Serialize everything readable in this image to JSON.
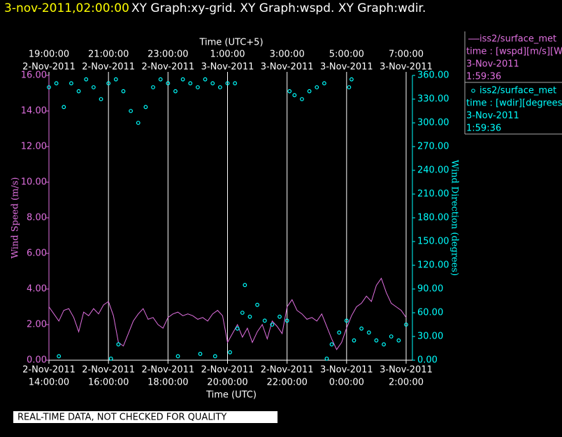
{
  "chart_data": {
    "type": "xy-time",
    "title_date": "3-nov-2011,02:00:00",
    "title": "XY Graph:xy-grid.  XY Graph:wspd.  XY Graph:wdir.",
    "xlabel": "Time (UTC)",
    "x2label": "Time (UTC+5)",
    "ylabel": "Wind Speed (m/s)",
    "y2label": "Wind Direction (degrees)",
    "note": "REAL-TIME DATA, NOT CHECKED FOR QUALITY",
    "xlim": [
      "2011-11-02T14:00",
      "2011-11-03T02:00"
    ],
    "xticks": [
      {
        "value": "2011-11-02T14:00",
        "label": [
          "2-Nov-2011",
          "14:00:00"
        ]
      },
      {
        "value": "2011-11-02T16:00",
        "label": [
          "2-Nov-2011",
          "16:00:00"
        ]
      },
      {
        "value": "2011-11-02T18:00",
        "label": [
          "2-Nov-2011",
          "18:00:00"
        ]
      },
      {
        "value": "2011-11-02T20:00",
        "label": [
          "2-Nov-2011",
          "20:00:00"
        ]
      },
      {
        "value": "2011-11-02T22:00",
        "label": [
          "2-Nov-2011",
          "22:00:00"
        ]
      },
      {
        "value": "2011-11-03T00:00",
        "label": [
          "3-Nov-2011",
          "0:00:00"
        ]
      },
      {
        "value": "2011-11-03T02:00",
        "label": [
          "3-Nov-2011",
          "2:00:00"
        ]
      }
    ],
    "x2ticks": [
      {
        "value": "2011-11-02T14:00",
        "label": [
          "19:00:00",
          "2-Nov-2011"
        ]
      },
      {
        "value": "2011-11-02T16:00",
        "label": [
          "21:00:00",
          "2-Nov-2011"
        ]
      },
      {
        "value": "2011-11-02T18:00",
        "label": [
          "23:00:00",
          "2-Nov-2011"
        ]
      },
      {
        "value": "2011-11-02T20:00",
        "label": [
          "1:00:00",
          "3-Nov-2011"
        ]
      },
      {
        "value": "2011-11-02T22:00",
        "label": [
          "3:00:00",
          "3-Nov-2011"
        ]
      },
      {
        "value": "2011-11-03T00:00",
        "label": [
          "5:00:00",
          "3-Nov-2011"
        ]
      },
      {
        "value": "2011-11-03T02:00",
        "label": [
          "7:00:00",
          "3-Nov-2011"
        ]
      }
    ],
    "ylim": [
      0,
      16
    ],
    "yticks": [
      {
        "value": 0,
        "label": "0.00"
      },
      {
        "value": 2,
        "label": "2.00"
      },
      {
        "value": 4,
        "label": "4.00"
      },
      {
        "value": 6,
        "label": "6.00"
      },
      {
        "value": 8,
        "label": "8.00"
      },
      {
        "value": 10,
        "label": "10.00"
      },
      {
        "value": 12,
        "label": "12.00"
      },
      {
        "value": 14,
        "label": "14.00"
      },
      {
        "value": 16,
        "label": "16.00"
      }
    ],
    "y2lim": [
      0,
      360
    ],
    "y2ticks": [
      {
        "value": 0,
        "label": "0.00"
      },
      {
        "value": 30,
        "label": "30.00"
      },
      {
        "value": 60,
        "label": "60.00"
      },
      {
        "value": 90,
        "label": "90.00"
      },
      {
        "value": 120,
        "label": "120.00"
      },
      {
        "value": 150,
        "label": "150.00"
      },
      {
        "value": 180,
        "label": "180.00"
      },
      {
        "value": 210,
        "label": "210.00"
      },
      {
        "value": 240,
        "label": "240.00"
      },
      {
        "value": 270,
        "label": "270.00"
      },
      {
        "value": 300,
        "label": "300.00"
      },
      {
        "value": 330,
        "label": "330.00"
      },
      {
        "value": 360,
        "label": "360.00"
      }
    ],
    "grid": true,
    "series": [
      {
        "name": "iss2/surface_met",
        "legend_lines": [
          "time : [wspd][m/s][Wind",
          "3-Nov-2011",
          "1:59:36"
        ],
        "color": "#e070e0",
        "style": "line",
        "x": [
          "2011-11-02T14:00",
          "2011-11-02T14:10",
          "2011-11-02T14:20",
          "2011-11-02T14:30",
          "2011-11-02T14:40",
          "2011-11-02T14:50",
          "2011-11-02T15:00",
          "2011-11-02T15:10",
          "2011-11-02T15:20",
          "2011-11-02T15:30",
          "2011-11-02T15:40",
          "2011-11-02T15:50",
          "2011-11-02T16:00",
          "2011-11-02T16:10",
          "2011-11-02T16:20",
          "2011-11-02T16:30",
          "2011-11-02T16:40",
          "2011-11-02T16:50",
          "2011-11-02T17:00",
          "2011-11-02T17:10",
          "2011-11-02T17:20",
          "2011-11-02T17:30",
          "2011-11-02T17:40",
          "2011-11-02T17:50",
          "2011-11-02T18:00",
          "2011-11-02T18:10",
          "2011-11-02T18:20",
          "2011-11-02T18:30",
          "2011-11-02T18:40",
          "2011-11-02T18:50",
          "2011-11-02T19:00",
          "2011-11-02T19:10",
          "2011-11-02T19:20",
          "2011-11-02T19:30",
          "2011-11-02T19:40",
          "2011-11-02T19:50",
          "2011-11-02T20:00",
          "2011-11-02T20:10",
          "2011-11-02T20:20",
          "2011-11-02T20:30",
          "2011-11-02T20:40",
          "2011-11-02T20:50",
          "2011-11-02T21:00",
          "2011-11-02T21:10",
          "2011-11-02T21:20",
          "2011-11-02T21:30",
          "2011-11-02T21:40",
          "2011-11-02T21:50",
          "2011-11-02T22:00",
          "2011-11-02T22:10",
          "2011-11-02T22:20",
          "2011-11-02T22:30",
          "2011-11-02T22:40",
          "2011-11-02T22:50",
          "2011-11-02T23:00",
          "2011-11-02T23:10",
          "2011-11-02T23:20",
          "2011-11-02T23:30",
          "2011-11-02T23:40",
          "2011-11-02T23:50",
          "2011-11-03T00:00",
          "2011-11-03T00:10",
          "2011-11-03T00:20",
          "2011-11-03T00:30",
          "2011-11-03T00:40",
          "2011-11-03T00:50",
          "2011-11-03T01:00",
          "2011-11-03T01:10",
          "2011-11-03T01:20",
          "2011-11-03T01:30",
          "2011-11-03T01:40",
          "2011-11-03T01:50",
          "2011-11-03T02:00"
        ],
        "values": [
          3.0,
          2.6,
          2.2,
          2.8,
          2.9,
          2.4,
          1.6,
          2.7,
          2.5,
          2.9,
          2.6,
          3.1,
          3.3,
          2.5,
          1.0,
          0.8,
          1.5,
          2.2,
          2.6,
          2.9,
          2.3,
          2.4,
          2.0,
          1.8,
          2.4,
          2.6,
          2.7,
          2.5,
          2.6,
          2.5,
          2.3,
          2.4,
          2.2,
          2.6,
          2.8,
          2.5,
          1.0,
          1.5,
          2.0,
          1.3,
          1.8,
          1.0,
          1.6,
          2.0,
          1.2,
          2.2,
          1.9,
          1.5,
          3.0,
          3.4,
          2.8,
          2.6,
          2.3,
          2.4,
          2.2,
          2.6,
          1.9,
          1.2,
          0.6,
          1.0,
          1.8,
          2.5,
          3.0,
          3.2,
          3.6,
          3.3,
          4.2,
          4.6,
          3.8,
          3.2,
          3.0,
          2.8,
          2.4
        ]
      },
      {
        "name": "iss2/surface_met",
        "legend_lines": [
          "time : [wdir][degrees][V",
          "3-Nov-2011",
          "1:59:36"
        ],
        "color": "#00ffff",
        "style": "scatter",
        "axis": "y2",
        "x": [
          "2011-11-02T14:00",
          "2011-11-02T14:15",
          "2011-11-02T14:20",
          "2011-11-02T14:30",
          "2011-11-02T14:45",
          "2011-11-02T15:00",
          "2011-11-02T15:15",
          "2011-11-02T15:30",
          "2011-11-02T15:45",
          "2011-11-02T16:00",
          "2011-11-02T16:05",
          "2011-11-02T16:15",
          "2011-11-02T16:20",
          "2011-11-02T16:30",
          "2011-11-02T16:45",
          "2011-11-02T17:00",
          "2011-11-02T17:15",
          "2011-11-02T17:30",
          "2011-11-02T17:45",
          "2011-11-02T18:00",
          "2011-11-02T18:15",
          "2011-11-02T18:20",
          "2011-11-02T18:30",
          "2011-11-02T18:45",
          "2011-11-02T19:00",
          "2011-11-02T19:05",
          "2011-11-02T19:15",
          "2011-11-02T19:30",
          "2011-11-02T19:35",
          "2011-11-02T19:45",
          "2011-11-02T20:00",
          "2011-11-02T20:05",
          "2011-11-02T20:15",
          "2011-11-02T20:20",
          "2011-11-02T20:30",
          "2011-11-02T20:35",
          "2011-11-02T20:45",
          "2011-11-02T21:00",
          "2011-11-02T21:15",
          "2011-11-02T21:30",
          "2011-11-02T21:45",
          "2011-11-02T22:00",
          "2011-11-02T22:05",
          "2011-11-02T22:15",
          "2011-11-02T22:30",
          "2011-11-02T22:45",
          "2011-11-02T23:00",
          "2011-11-02T23:15",
          "2011-11-02T23:20",
          "2011-11-02T23:30",
          "2011-11-02T23:45",
          "2011-11-03T00:00",
          "2011-11-03T00:05",
          "2011-11-03T00:10",
          "2011-11-03T00:15",
          "2011-11-03T00:30",
          "2011-11-03T00:45",
          "2011-11-03T01:00",
          "2011-11-03T01:15",
          "2011-11-03T01:30",
          "2011-11-03T01:45",
          "2011-11-03T02:00"
        ],
        "values": [
          345,
          350,
          5,
          320,
          350,
          340,
          355,
          345,
          330,
          350,
          2,
          355,
          20,
          340,
          315,
          300,
          320,
          345,
          355,
          350,
          340,
          5,
          355,
          350,
          345,
          8,
          355,
          350,
          5,
          345,
          350,
          10,
          350,
          40,
          60,
          95,
          55,
          70,
          50,
          45,
          55,
          50,
          340,
          335,
          330,
          340,
          345,
          350,
          2,
          20,
          35,
          50,
          345,
          355,
          25,
          40,
          35,
          25,
          20,
          30,
          25,
          45
        ]
      }
    ]
  }
}
